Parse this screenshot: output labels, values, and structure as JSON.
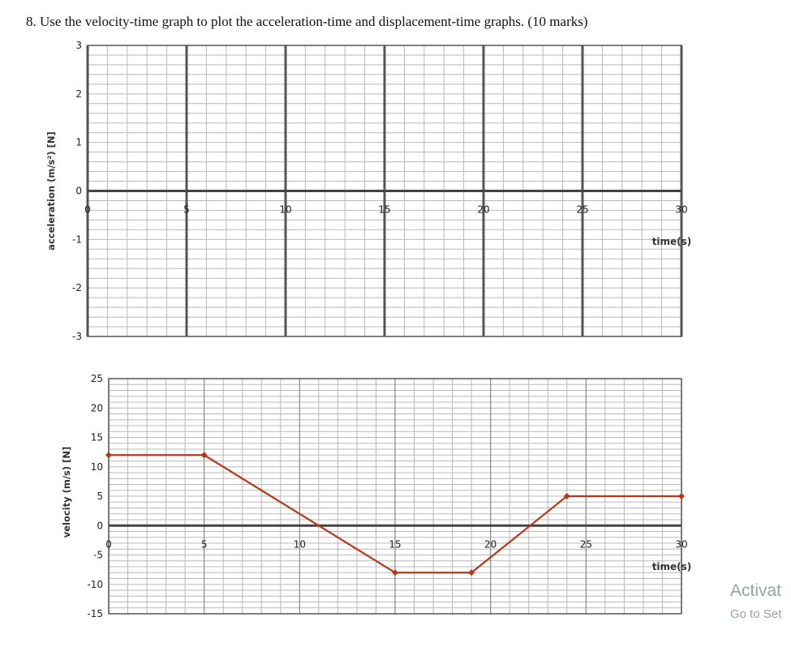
{
  "question": "8. Use the velocity-time graph to plot the acceleration-time and displacement-time graphs. (10 marks)",
  "chart_data": [
    {
      "type": "line",
      "title": "",
      "xlabel": "time(s)",
      "ylabel": "acceleration (m/s²) [N]",
      "xlim": [
        0,
        30
      ],
      "ylim": [
        -3,
        3
      ],
      "x_ticks": [
        "0",
        "5",
        "10",
        "15",
        "20",
        "25",
        "30"
      ],
      "y_ticks": [
        "3",
        "2",
        "1",
        "0",
        "-1",
        "-2",
        "-3"
      ],
      "grid": true,
      "series": []
    },
    {
      "type": "line",
      "title": "",
      "xlabel": "time(s)",
      "ylabel": "velocity (m/s) [N]",
      "xlim": [
        0,
        30
      ],
      "ylim": [
        -15,
        25
      ],
      "x_ticks": [
        "0",
        "5",
        "10",
        "15",
        "20",
        "25",
        "30"
      ],
      "y_ticks": [
        "25",
        "20",
        "15",
        "10",
        "5",
        "0",
        "-5",
        "-10",
        "-15"
      ],
      "grid": true,
      "line_color": "#b5381b",
      "series": [
        {
          "x": [
            0,
            5,
            15,
            19,
            24,
            30
          ],
          "y": [
            12,
            12,
            -8,
            -8,
            5,
            5
          ]
        }
      ]
    }
  ],
  "watermark": {
    "line1": "Activat",
    "line2": "Go to Set"
  }
}
